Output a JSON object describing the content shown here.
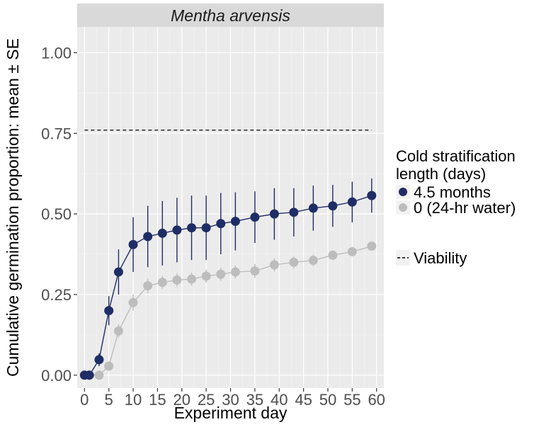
{
  "chart_data": {
    "type": "line",
    "title": "Mentha arvensis",
    "xlabel": "Experiment day",
    "ylabel": "Cumulative germination proportion: mean ± SE",
    "xlim": [
      -1.5,
      61.5
    ],
    "ylim": [
      -0.04,
      1.08
    ],
    "xticks": [
      0,
      5,
      10,
      15,
      20,
      25,
      30,
      35,
      40,
      45,
      50,
      55,
      60
    ],
    "yticks": [
      0.0,
      0.25,
      0.5,
      0.75,
      1.0
    ],
    "ytick_labels": [
      "0.00",
      "0.25",
      "0.50",
      "0.75",
      "1.00"
    ],
    "grid": true,
    "legend": {
      "title_line1": "Cold stratification",
      "title_line2": "length (days)",
      "position": "right",
      "viability_label": "Viability"
    },
    "series": [
      {
        "name": "4.5 months",
        "color": "#1f2d66",
        "x": [
          0,
          1,
          3,
          5,
          7,
          10,
          13,
          16,
          19,
          22,
          25,
          28,
          31,
          35,
          39,
          43,
          47,
          51,
          55,
          59
        ],
        "y": [
          0.0,
          0.0,
          0.048,
          0.2,
          0.32,
          0.405,
          0.43,
          0.44,
          0.45,
          0.457,
          0.457,
          0.47,
          0.477,
          0.49,
          0.5,
          0.505,
          0.518,
          0.525,
          0.537,
          0.557
        ],
        "se": [
          0.0,
          0.0,
          0.02,
          0.045,
          0.07,
          0.085,
          0.095,
          0.1,
          0.1,
          0.1,
          0.1,
          0.095,
          0.09,
          0.08,
          0.08,
          0.075,
          0.07,
          0.065,
          0.063,
          0.053
        ]
      },
      {
        "name": "0 (24-hr water)",
        "color": "#bdbdbd",
        "x": [
          0,
          1,
          3,
          5,
          7,
          10,
          13,
          16,
          19,
          22,
          25,
          28,
          31,
          35,
          39,
          43,
          47,
          51,
          55,
          59
        ],
        "y": [
          0.0,
          0.0,
          0.0,
          0.028,
          0.137,
          0.225,
          0.277,
          0.288,
          0.295,
          0.298,
          0.307,
          0.313,
          0.32,
          0.323,
          0.342,
          0.35,
          0.356,
          0.372,
          0.383,
          0.4
        ],
        "se": [
          0.0,
          0.0,
          0.0,
          0.01,
          0.02,
          0.025,
          0.023,
          0.02,
          0.02,
          0.02,
          0.02,
          0.02,
          0.02,
          0.022,
          0.02,
          0.018,
          0.018,
          0.015,
          0.012,
          0.01
        ]
      }
    ],
    "reference_line": {
      "name": "Viability",
      "y": 0.76,
      "x_range": [
        0,
        59
      ],
      "style": "dashed"
    }
  }
}
